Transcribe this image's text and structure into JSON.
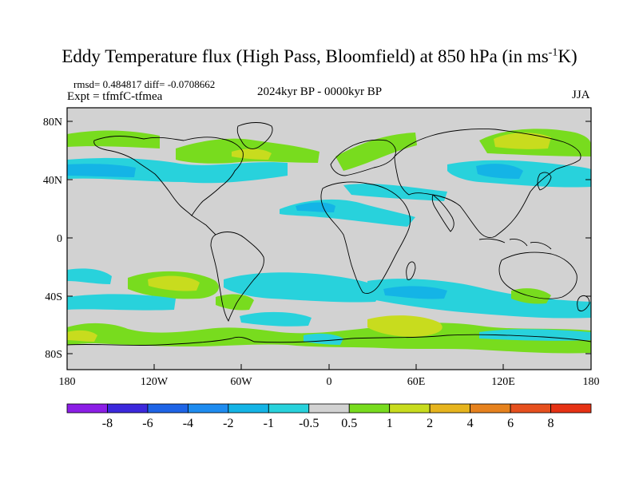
{
  "title": {
    "main": "Eddy Temperature flux (High Pass, Bloomfield) at 850 hPa (in ms",
    "superscript": "-1",
    "end": "K)"
  },
  "stats": "rmsd= 0.484817 diff= -0.0708662",
  "experiment": "Expt = tfmfC-tfmea",
  "period": "2024kyr BP - 0000kyr BP",
  "season": "JJA",
  "latitude_labels": [
    "80N",
    "40N",
    "0",
    "40S",
    "80S"
  ],
  "longitude_labels": [
    "180",
    "120W",
    "60W",
    "0",
    "60E",
    "120E",
    "180"
  ],
  "colorbar": {
    "labels": [
      "-8",
      "-6",
      "-4",
      "-2",
      "-1",
      "-0.5",
      "0.5",
      "1",
      "2",
      "4",
      "6",
      "8"
    ],
    "colors": [
      "#8c1ee6",
      "#3c28dc",
      "#1e64e6",
      "#1e8cf0",
      "#14b4e6",
      "#28d2dc",
      "#d2d2d2",
      "#78dc1e",
      "#c8dc1e",
      "#e6b41e",
      "#e6821e",
      "#e6501e",
      "#e63214"
    ]
  },
  "colors": {
    "land_ocean": "#d2d2d2",
    "coast": "#000000"
  }
}
